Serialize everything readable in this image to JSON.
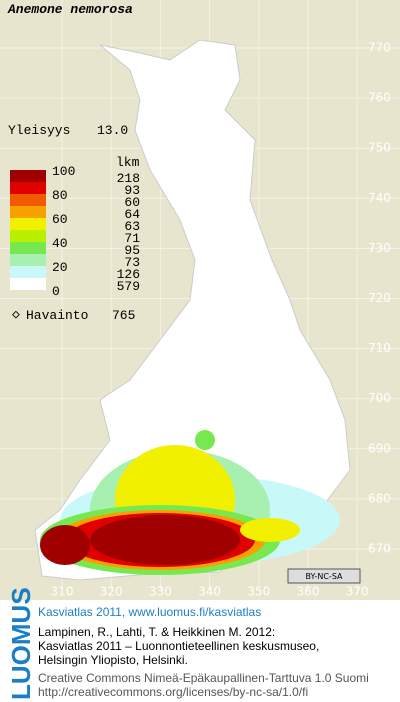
{
  "title": "Anemone nemorosa",
  "frequency": {
    "label": "Yleisyys",
    "value": "13.0"
  },
  "legend": {
    "scale": [
      100,
      80,
      60,
      40,
      20,
      0
    ],
    "count_header": "lkm",
    "classes": [
      {
        "color": "#a00000",
        "count": 218
      },
      {
        "color": "#e00000",
        "count": 93
      },
      {
        "color": "#f05a00",
        "count": 60
      },
      {
        "color": "#f8a000",
        "count": 64
      },
      {
        "color": "#f0f000",
        "count": 63
      },
      {
        "color": "#b8f000",
        "count": 71
      },
      {
        "color": "#78e850",
        "count": 95
      },
      {
        "color": "#a8f0b0",
        "count": 73
      },
      {
        "color": "#c8f8f8",
        "count": 126
      },
      {
        "color": "#ffffff",
        "count": 579
      }
    ]
  },
  "observations": {
    "label": "Havainto",
    "count": 765
  },
  "map": {
    "xticks": [
      310,
      320,
      330,
      340,
      350,
      360,
      370
    ],
    "yticks": [
      770,
      760,
      750,
      740,
      730,
      720,
      710,
      700,
      690,
      680,
      670
    ]
  },
  "license_badge": "BY-NC-SA",
  "footer": {
    "logo": "LUOMUS",
    "heading": "Kasviatlas 2011, www.luomus.fi/kasviatlas",
    "citation": [
      "Lampinen, R., Lahti, T. & Heikkinen M. 2012:",
      "Kasviatlas 2011 – Luonnontieteellinen keskusmuseo,",
      "Helsingin Yliopisto, Helsinki."
    ],
    "license": [
      "Creative Commons Nimeä-Epäkaupallinen-Tarttuva 1.0 Suomi",
      "http://creativecommons.org/licenses/by-nc-sa/1.0/fi"
    ]
  }
}
